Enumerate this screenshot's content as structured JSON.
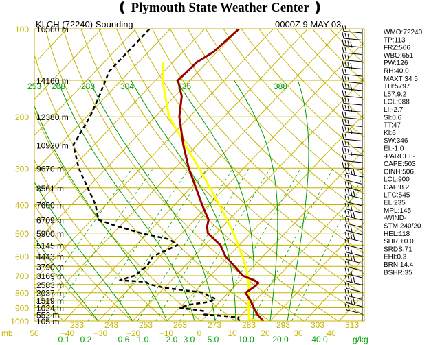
{
  "header": {
    "title": "Plymouth State Weather Center",
    "station": "KLCH (72240) Sounding",
    "time": "0000Z  9 MAY 03"
  },
  "chart_data": {
    "type": "skew-t",
    "pressure_axis": {
      "ticks": [
        "100",
        "200",
        "300",
        "400",
        "500",
        "600",
        "700",
        "800",
        "900",
        "1000"
      ],
      "ylim_mb": [
        1000,
        100
      ],
      "scale": "log"
    },
    "height_labels": [
      {
        "p": 100,
        "text": "16560 m"
      },
      {
        "p": 150,
        "text": "14160 m"
      },
      {
        "p": 200,
        "text": "12380 m"
      },
      {
        "p": 250,
        "text": "10920 m"
      },
      {
        "p": 300,
        "text": "9670 m"
      },
      {
        "p": 350,
        "text": "8561 m"
      },
      {
        "p": 400,
        "text": "7600 m"
      },
      {
        "p": 450,
        "text": "6709 m"
      },
      {
        "p": 500,
        "text": "5900 m"
      },
      {
        "p": 550,
        "text": "5145 m"
      },
      {
        "p": 600,
        "text": "4443 m"
      },
      {
        "p": 650,
        "text": "3790 m"
      },
      {
        "p": 700,
        "text": "3169 m"
      },
      {
        "p": 750,
        "text": "2583 m"
      },
      {
        "p": 800,
        "text": "2037 m"
      },
      {
        "p": 850,
        "text": "1519 m"
      },
      {
        "p": 900,
        "text": "1024 m"
      },
      {
        "p": 950,
        "text": "552 m"
      },
      {
        "p": 1000,
        "text": "105 m"
      }
    ],
    "temperature_axis": {
      "label": "mb",
      "ticks": [
        "50",
        "−40",
        "−30",
        "−20",
        "−10",
        "0",
        "10",
        "20",
        "30",
        "40"
      ]
    },
    "theta_labels_bottom": [
      "233",
      "243",
      "253",
      "263",
      "273",
      "283",
      "293",
      "303",
      "313"
    ],
    "theta_labels_mid": [
      "253",
      "268",
      "283",
      "304",
      "335",
      "388"
    ],
    "mixing_ratio_labels": [
      "0.1",
      "0.2",
      "0.6",
      "1.0",
      "2.0",
      "3.0",
      "5.0",
      "10.0",
      "20.0",
      "40.0"
    ],
    "mixing_ratio_unit": "g/kg",
    "temperature_profile": [
      {
        "p": 1000,
        "t": 28
      },
      {
        "p": 950,
        "t": 24.5
      },
      {
        "p": 900,
        "t": 21.5
      },
      {
        "p": 850,
        "t": 18.5
      },
      {
        "p": 800,
        "t": 15
      },
      {
        "p": 760,
        "t": 16
      },
      {
        "p": 740,
        "t": 16
      },
      {
        "p": 725,
        "t": 14
      },
      {
        "p": 700,
        "t": 9.5
      },
      {
        "p": 650,
        "t": 4.5
      },
      {
        "p": 600,
        "t": -1
      },
      {
        "p": 550,
        "t": -5.5
      },
      {
        "p": 500,
        "t": -12.5
      },
      {
        "p": 475,
        "t": -14.5
      },
      {
        "p": 450,
        "t": -16
      },
      {
        "p": 400,
        "t": -22
      },
      {
        "p": 350,
        "t": -28.5
      },
      {
        "p": 300,
        "t": -36
      },
      {
        "p": 250,
        "t": -44
      },
      {
        "p": 200,
        "t": -53
      },
      {
        "p": 170,
        "t": -58
      },
      {
        "p": 150,
        "t": -63.5
      },
      {
        "p": 130,
        "t": -63
      },
      {
        "p": 120,
        "t": -61
      },
      {
        "p": 100,
        "t": -60
      }
    ],
    "dewpoint_profile": [
      {
        "p": 1000,
        "t": 21
      },
      {
        "p": 970,
        "t": 19.5
      },
      {
        "p": 950,
        "t": 9
      },
      {
        "p": 925,
        "t": 8
      },
      {
        "p": 900,
        "t": 0
      },
      {
        "p": 880,
        "t": 2
      },
      {
        "p": 860,
        "t": 7
      },
      {
        "p": 840,
        "t": 8
      },
      {
        "p": 820,
        "t": 5
      },
      {
        "p": 800,
        "t": 3
      },
      {
        "p": 770,
        "t": -10
      },
      {
        "p": 750,
        "t": -15
      },
      {
        "p": 735,
        "t": -17
      },
      {
        "p": 725,
        "t": -25
      },
      {
        "p": 700,
        "t": -22
      },
      {
        "p": 650,
        "t": -21
      },
      {
        "p": 600,
        "t": -22
      },
      {
        "p": 550,
        "t": -18
      },
      {
        "p": 525,
        "t": -22
      },
      {
        "p": 500,
        "t": -32
      },
      {
        "p": 470,
        "t": -42
      },
      {
        "p": 450,
        "t": -48
      },
      {
        "p": 400,
        "t": -53
      },
      {
        "p": 350,
        "t": -60
      },
      {
        "p": 300,
        "t": -68
      },
      {
        "p": 250,
        "t": -76
      },
      {
        "p": 200,
        "t": -79
      },
      {
        "p": 170,
        "t": -82
      },
      {
        "p": 140,
        "t": -86
      },
      {
        "p": 120,
        "t": -86
      },
      {
        "p": 100,
        "t": -86
      }
    ],
    "parcel_profile": [
      {
        "p": 1000,
        "t": 28
      },
      {
        "p": 988,
        "t": 23.5
      },
      {
        "p": 900,
        "t": 20
      },
      {
        "p": 800,
        "t": 16
      },
      {
        "p": 700,
        "t": 11
      },
      {
        "p": 600,
        "t": 4
      },
      {
        "p": 500,
        "t": -5
      },
      {
        "p": 400,
        "t": -17
      },
      {
        "p": 300,
        "t": -33
      },
      {
        "p": 200,
        "t": -56
      },
      {
        "p": 150,
        "t": -68
      },
      {
        "p": 130,
        "t": -73
      }
    ],
    "stats": [
      "WMO:72240",
      "TP:113",
      "FRZ:566",
      "WBO:651",
      "PW:126",
      "RH:40.0",
      "MAXT 34 5",
      "TH:5797",
      "L57:9.2",
      "LCL:988",
      "LI:-2.7",
      "SI:0.6",
      "TT:47",
      "KI:6",
      "SW:346",
      "EI:-1.0",
      "-PARCEL-",
      "CAPE:503",
      "CINH:506",
      "LCL:900",
      "CAP:8.2",
      "LFC:545",
      "EL:235",
      "MPL:145",
      "-WIND-",
      "STM:240/20",
      "HEL:118",
      "SHR:+0.0",
      "SRDS:71",
      "EHI:0.3",
      "BRN:14.4",
      "BSHR:35"
    ],
    "grid": true,
    "colors": {
      "isobar": "#c4b400",
      "isotherm": "#c4b400",
      "dry_adiabat": "#c4b400",
      "moist_adiabat": "#009a00",
      "mixing_ratio": "#00a000",
      "temperature": "#9a0000",
      "dewpoint": "#000000",
      "parcel": "#ffff00"
    }
  }
}
